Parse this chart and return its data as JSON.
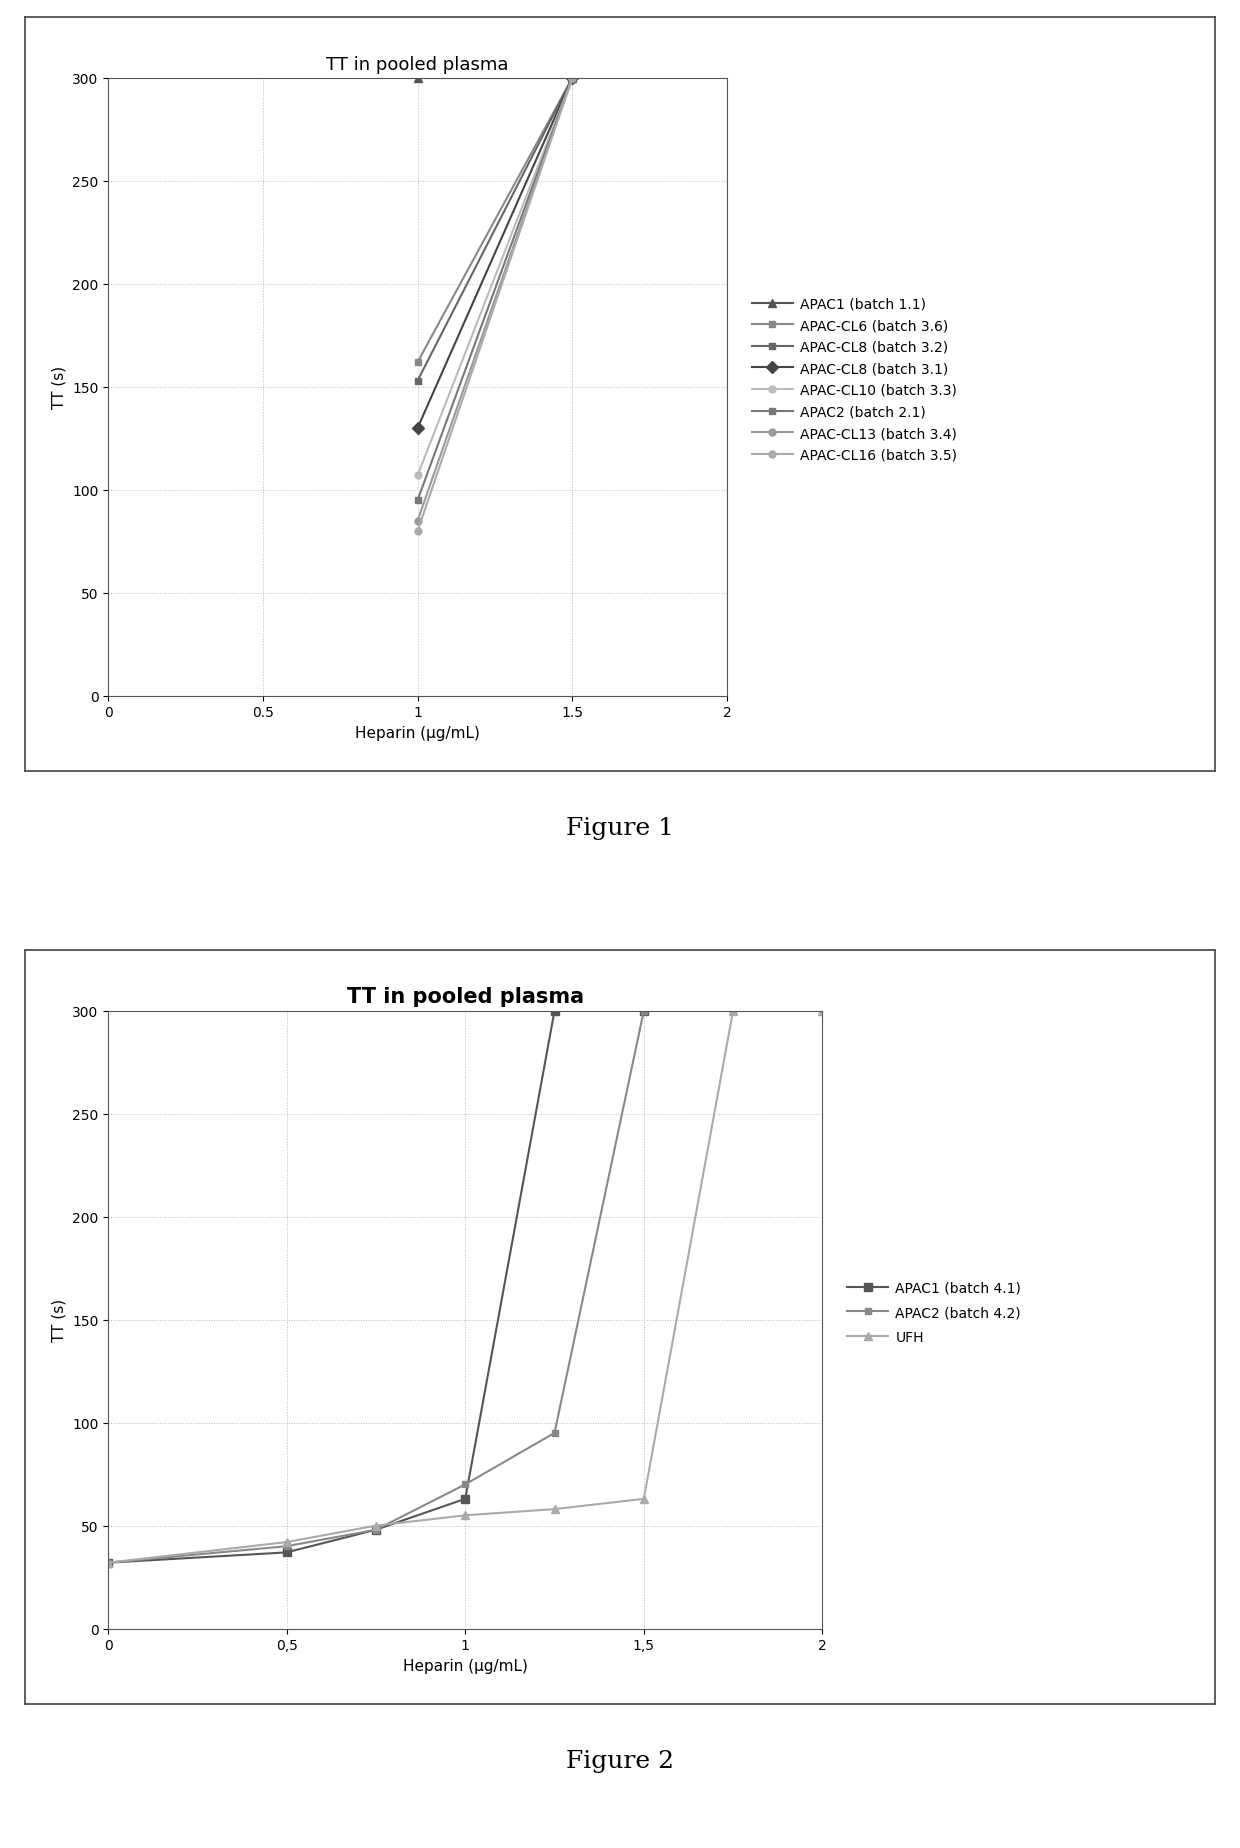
{
  "fig1": {
    "title": "TT in pooled plasma",
    "xlabel": "Heparin (μg/mL)",
    "ylabel": "TT (s)",
    "xlim": [
      0,
      2
    ],
    "ylim": [
      0,
      300
    ],
    "xticks": [
      0,
      0.5,
      1,
      1.5,
      2
    ],
    "xtick_labels": [
      "0",
      "0.5",
      "1",
      "1.5",
      "2"
    ],
    "yticks": [
      0,
      50,
      100,
      150,
      200,
      250,
      300
    ],
    "series": [
      {
        "label": "APAC1 (batch 1.1)",
        "x": [
          1.0,
          1.5
        ],
        "y": [
          300,
          300
        ],
        "color": "#555555",
        "marker": "^",
        "markersize": 6,
        "linewidth": 1.5
      },
      {
        "label": "APAC-CL6 (batch 3.6)",
        "x": [
          1.0,
          1.5
        ],
        "y": [
          162,
          300
        ],
        "color": "#888888",
        "marker": "s",
        "markersize": 5,
        "linewidth": 1.5
      },
      {
        "label": "APAC-CL8 (batch 3.2)",
        "x": [
          1.0,
          1.5
        ],
        "y": [
          153,
          300
        ],
        "color": "#666666",
        "marker": "s",
        "markersize": 5,
        "linewidth": 1.5
      },
      {
        "label": "APAC-CL8 (batch 3.1)",
        "x": [
          1.0,
          1.5
        ],
        "y": [
          130,
          300
        ],
        "color": "#444444",
        "marker": "D",
        "markersize": 6,
        "linewidth": 1.5
      },
      {
        "label": "APAC-CL10 (batch 3.3)",
        "x": [
          1.0,
          1.5
        ],
        "y": [
          107,
          300
        ],
        "color": "#bbbbbb",
        "marker": "o",
        "markersize": 5,
        "linewidth": 1.5
      },
      {
        "label": "APAC2 (batch 2.1)",
        "x": [
          1.0,
          1.5
        ],
        "y": [
          95,
          300
        ],
        "color": "#777777",
        "marker": "s",
        "markersize": 5,
        "linewidth": 1.5
      },
      {
        "label": "APAC-CL13 (batch 3.4)",
        "x": [
          1.0,
          1.5
        ],
        "y": [
          85,
          300
        ],
        "color": "#999999",
        "marker": "o",
        "markersize": 5,
        "linewidth": 1.5
      },
      {
        "label": "APAC-CL16 (batch 3.5)",
        "x": [
          1.0,
          1.5
        ],
        "y": [
          80,
          300
        ],
        "color": "#aaaaaa",
        "marker": "o",
        "markersize": 5,
        "linewidth": 1.5
      }
    ]
  },
  "fig2": {
    "title": "TT in pooled plasma",
    "xlabel": "Heparin (μg/mL)",
    "ylabel": "TT (s)",
    "xlim": [
      0,
      2
    ],
    "ylim": [
      0,
      300
    ],
    "xticks": [
      0,
      0.5,
      1,
      1.5,
      2
    ],
    "xtick_labels": [
      "0",
      "0,5",
      "1",
      "1,5",
      "2"
    ],
    "yticks": [
      0,
      50,
      100,
      150,
      200,
      250,
      300
    ],
    "series": [
      {
        "label": "APAC1 (batch 4.1)",
        "x": [
          0,
          0.5,
          0.75,
          1.0,
          1.25,
          1.5
        ],
        "y": [
          32,
          37,
          48,
          63,
          300,
          300
        ],
        "color": "#555555",
        "marker": "s",
        "markersize": 6,
        "linewidth": 1.5
      },
      {
        "label": "APAC2 (batch 4.2)",
        "x": [
          0,
          0.5,
          0.75,
          1.0,
          1.25,
          1.5,
          1.75
        ],
        "y": [
          32,
          40,
          48,
          70,
          95,
          300,
          300
        ],
        "color": "#888888",
        "marker": "s",
        "markersize": 5,
        "linewidth": 1.5
      },
      {
        "label": "UFH",
        "x": [
          0,
          0.5,
          0.75,
          1.0,
          1.25,
          1.5,
          1.75,
          2.0
        ],
        "y": [
          32,
          42,
          50,
          55,
          58,
          63,
          300,
          300
        ],
        "color": "#aaaaaa",
        "marker": "^",
        "markersize": 6,
        "linewidth": 1.5
      }
    ]
  },
  "figure1_caption": "Figure 1",
  "figure2_caption": "Figure 2",
  "background_color": "#ffffff",
  "grid_color": "#bbbbbb",
  "grid_style": "dotted",
  "title1_fontsize": 13,
  "title2_fontsize": 15,
  "title2_fontweight": "bold",
  "label_fontsize": 11,
  "tick_fontsize": 10,
  "legend_fontsize": 10,
  "caption_fontsize": 18
}
